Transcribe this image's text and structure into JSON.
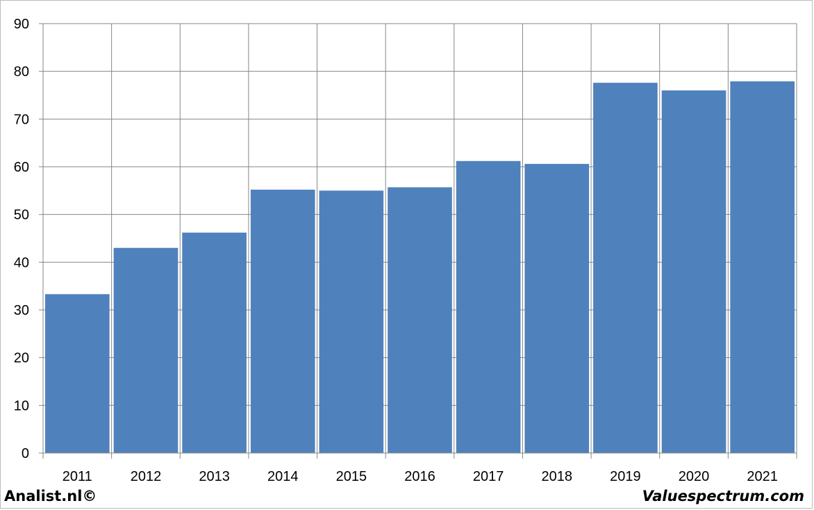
{
  "chart_data": {
    "type": "bar",
    "categories": [
      "2011",
      "2012",
      "2013",
      "2014",
      "2015",
      "2016",
      "2017",
      "2018",
      "2019",
      "2020",
      "2021"
    ],
    "values": [
      33.3,
      43.0,
      46.2,
      55.2,
      55.0,
      55.7,
      61.2,
      60.6,
      77.6,
      76.0,
      77.9
    ],
    "title": "",
    "xlabel": "",
    "ylabel": "",
    "ylim": [
      0,
      90
    ],
    "yticks": [
      0,
      10,
      20,
      30,
      40,
      50,
      60,
      70,
      80,
      90
    ],
    "grid": true,
    "legend": "none",
    "bar_color": "#4F81BD",
    "grid_color": "#868686"
  },
  "footer": {
    "left": "Analist.nl©",
    "right": "Valuespectrum.com"
  }
}
